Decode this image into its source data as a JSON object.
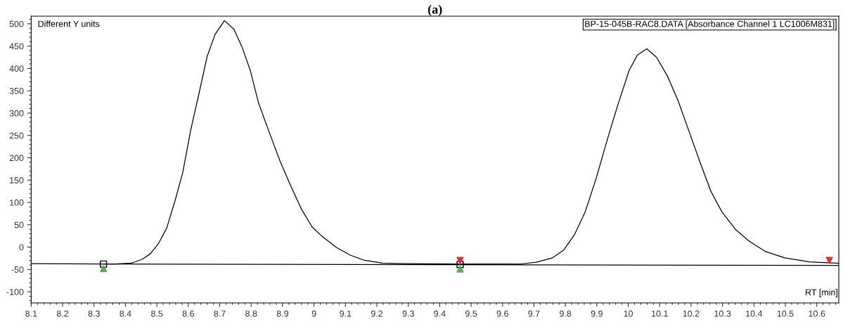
{
  "chart_data": {
    "type": "line",
    "title": "(a)",
    "xlabel": "RT [min]",
    "annotations": [
      "Different Y units",
      "BP-15-045B-RAC8.DATA [Absorbance Channel 1 LC1006M831]"
    ],
    "xlim": [
      8.1,
      10.67
    ],
    "ylim": [
      -125,
      517
    ],
    "xticks": [
      8.1,
      8.2,
      8.3,
      8.4,
      8.5,
      8.6,
      8.7,
      8.8,
      8.9,
      {
        "value": 9,
        "label": "9"
      },
      9.1,
      9.2,
      9.3,
      9.4,
      9.5,
      9.6,
      9.7,
      9.8,
      9.9,
      {
        "value": 10,
        "label": "10"
      },
      10.1,
      10.2,
      10.3,
      10.4,
      10.5,
      10.6
    ],
    "yticks": [
      -100,
      -50,
      0,
      50,
      100,
      150,
      200,
      250,
      300,
      350,
      400,
      450,
      500
    ],
    "grid": false,
    "marker": "none",
    "line_style": "solid",
    "series": [
      {
        "color": "#000000",
        "x": [
          8.1,
          8.33,
          8.368,
          8.419,
          8.454,
          8.479,
          8.505,
          8.531,
          8.557,
          8.582,
          8.608,
          8.634,
          8.66,
          8.685,
          8.715,
          8.745,
          8.771,
          8.797,
          8.823,
          8.857,
          8.891,
          8.926,
          8.96,
          8.994,
          9.029,
          9.072,
          9.115,
          9.158,
          9.218,
          9.286,
          9.46,
          9.655,
          9.707,
          9.759,
          9.794,
          9.829,
          9.863,
          9.898,
          9.933,
          9.968,
          10.003,
          10.029,
          10.059,
          10.09,
          10.124,
          10.159,
          10.194,
          10.229,
          10.263,
          10.298,
          10.342,
          10.385,
          10.437,
          10.498,
          10.577,
          10.67
        ],
        "values": [
          -37,
          -38,
          -38,
          -36,
          -27,
          -15,
          8,
          42,
          102,
          166,
          263,
          344,
          427,
          476,
          507,
          488,
          448,
          396,
          324,
          258,
          194,
          137,
          85,
          45,
          22,
          -1,
          -18,
          -29,
          -36,
          -37,
          -38,
          -38,
          -34,
          -24,
          -7,
          28,
          79,
          154,
          240,
          321,
          396,
          430,
          444,
          425,
          384,
          327,
          258,
          189,
          125,
          79,
          39,
          13,
          -10,
          -24,
          -33,
          -36
        ]
      },
      {
        "type": "line",
        "color": "#000000",
        "x": [
          8.33,
          10.67
        ],
        "values": [
          -38,
          -41
        ]
      },
      {
        "type": "scatter",
        "marker": "square",
        "color": "#000000",
        "x": [
          8.33,
          9.465
        ],
        "values": [
          -38,
          -39
        ]
      },
      {
        "type": "scatter",
        "marker": "triangle",
        "color": "#5fa85a",
        "x": [
          8.33,
          9.465
        ],
        "values": [
          -48,
          -49
        ]
      },
      {
        "type": "scatter",
        "marker": "triangle_down",
        "color": "#e03030",
        "x": [
          9.465,
          10.64
        ],
        "values": [
          -30,
          -30
        ]
      }
    ]
  }
}
